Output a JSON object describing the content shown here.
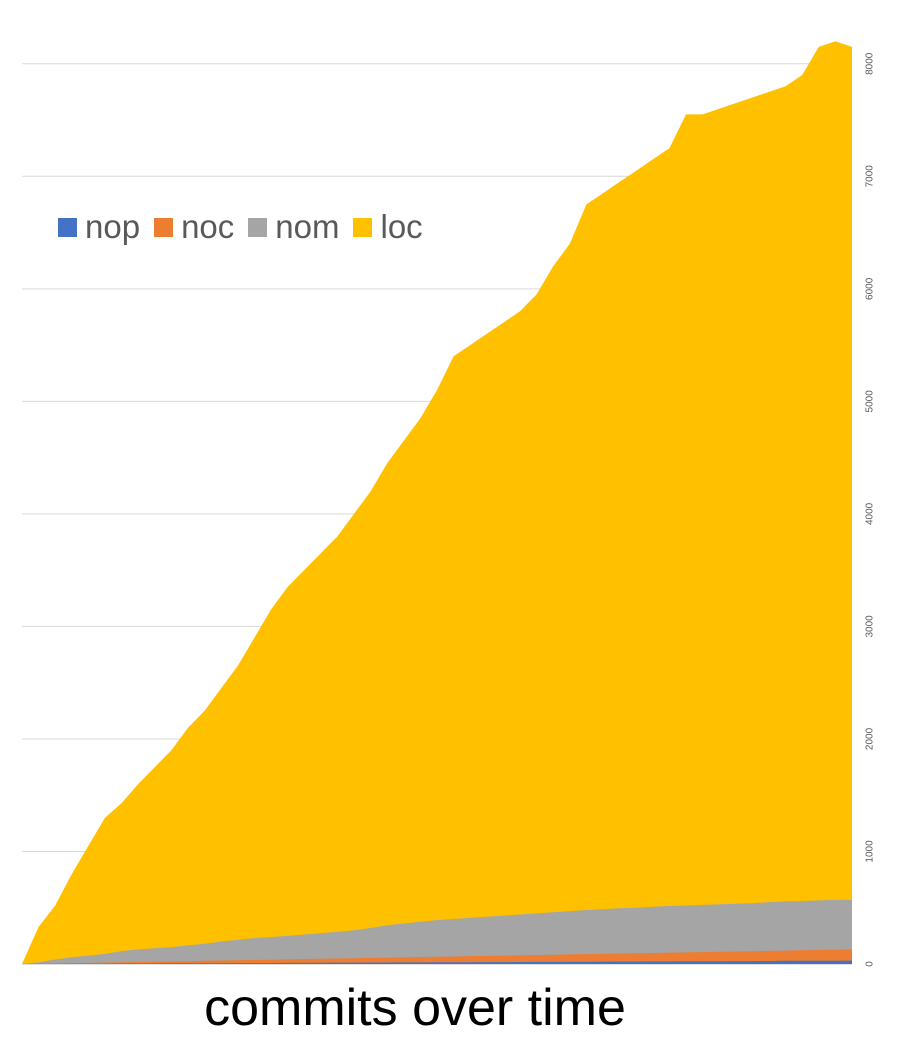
{
  "chart_data": {
    "type": "area",
    "stacked": false,
    "xlabel": "commits over time",
    "ylabel": "",
    "ylim": [
      0,
      8300
    ],
    "yticks": [
      0,
      1000,
      2000,
      3000,
      4000,
      5000,
      6000,
      7000,
      8000
    ],
    "y_axis_position": "right",
    "grid": true,
    "legend_position": "top-left",
    "x": [
      0,
      2,
      4,
      6,
      8,
      10,
      12,
      14,
      16,
      18,
      20,
      22,
      24,
      26,
      28,
      30,
      32,
      34,
      36,
      38,
      40,
      42,
      44,
      46,
      48,
      50,
      52,
      54,
      56,
      58,
      60,
      62,
      64,
      66,
      68,
      70,
      72,
      74,
      76,
      78,
      80,
      82,
      84,
      86,
      88,
      90,
      92,
      94,
      96,
      98,
      100
    ],
    "series": [
      {
        "name": "nop",
        "color": "#4472c4",
        "values": [
          0,
          1,
          1,
          2,
          3,
          3,
          4,
          4,
          5,
          6,
          6,
          7,
          7,
          8,
          9,
          9,
          10,
          10,
          11,
          12,
          12,
          13,
          13,
          14,
          14,
          15,
          16,
          16,
          17,
          17,
          18,
          19,
          19,
          20,
          20,
          21,
          22,
          22,
          23,
          23,
          24,
          25,
          25,
          26,
          26,
          27,
          28,
          28,
          29,
          29,
          30
        ]
      },
      {
        "name": "noc",
        "color": "#ed7d31",
        "values": [
          0,
          2,
          5,
          7,
          10,
          12,
          15,
          18,
          20,
          23,
          25,
          28,
          31,
          33,
          36,
          38,
          41,
          44,
          46,
          49,
          51,
          54,
          57,
          59,
          62,
          64,
          67,
          70,
          72,
          75,
          77,
          80,
          83,
          85,
          88,
          90,
          93,
          96,
          98,
          101,
          103,
          106,
          109,
          111,
          114,
          116,
          119,
          122,
          124,
          127,
          130
        ]
      },
      {
        "name": "nom",
        "color": "#a5a5a5",
        "values": [
          0,
          15,
          40,
          60,
          75,
          90,
          115,
          130,
          140,
          150,
          165,
          180,
          200,
          215,
          230,
          240,
          250,
          262,
          275,
          285,
          300,
          320,
          345,
          360,
          375,
          390,
          400,
          410,
          420,
          430,
          440,
          450,
          460,
          470,
          480,
          488,
          495,
          500,
          508,
          515,
          520,
          525,
          530,
          535,
          540,
          548,
          555,
          560,
          565,
          570,
          570
        ]
      },
      {
        "name": "loc",
        "color": "#ffc000",
        "values": [
          0,
          330,
          520,
          800,
          1050,
          1300,
          1430,
          1600,
          1750,
          1900,
          2100,
          2250,
          2450,
          2650,
          2900,
          3150,
          3350,
          3500,
          3650,
          3800,
          4000,
          4200,
          4450,
          4650,
          4850,
          5100,
          5400,
          5500,
          5600,
          5700,
          5800,
          5950,
          6200,
          6400,
          6750,
          6850,
          6950,
          7050,
          7150,
          7250,
          7550,
          7550,
          7600,
          7650,
          7700,
          7750,
          7800,
          7900,
          8150,
          8200,
          8150
        ]
      }
    ]
  }
}
